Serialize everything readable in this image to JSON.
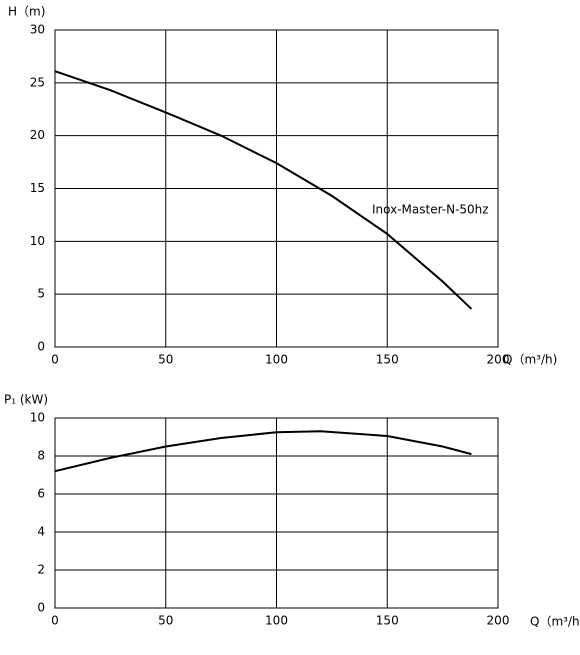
{
  "chart_data": [
    {
      "type": "line",
      "ylabel": "H（m)",
      "xlabel": "Q（m³/h)",
      "annotation": "Inox-Master-N-50hz",
      "x": [
        0,
        25,
        50,
        75,
        100,
        125,
        150,
        175,
        188
      ],
      "series": [
        {
          "color": "#000000",
          "values": [
            26.1,
            24.3,
            22.2,
            20.0,
            17.4,
            14.3,
            10.7,
            6.2,
            3.6
          ]
        }
      ],
      "xlim": [
        0,
        200
      ],
      "xticks": [
        0,
        50,
        100,
        150,
        200
      ],
      "ylim": [
        0,
        30
      ],
      "yticks": [
        0,
        5,
        10,
        15,
        20,
        25,
        30
      ],
      "grid": true
    },
    {
      "type": "line",
      "ylabel": "P₁ (kW)",
      "xlabel": "Q（m³/h)",
      "x": [
        0,
        25,
        50,
        75,
        100,
        120,
        150,
        175,
        188
      ],
      "series": [
        {
          "color": "#000000",
          "values": [
            7.2,
            7.9,
            8.5,
            8.95,
            9.25,
            9.3,
            9.05,
            8.5,
            8.1
          ]
        }
      ],
      "xlim": [
        0,
        200
      ],
      "xticks": [
        0,
        50,
        100,
        150,
        200
      ],
      "ylim": [
        0,
        10
      ],
      "yticks": [
        0,
        2,
        4,
        6,
        8,
        10
      ],
      "grid": true
    }
  ]
}
